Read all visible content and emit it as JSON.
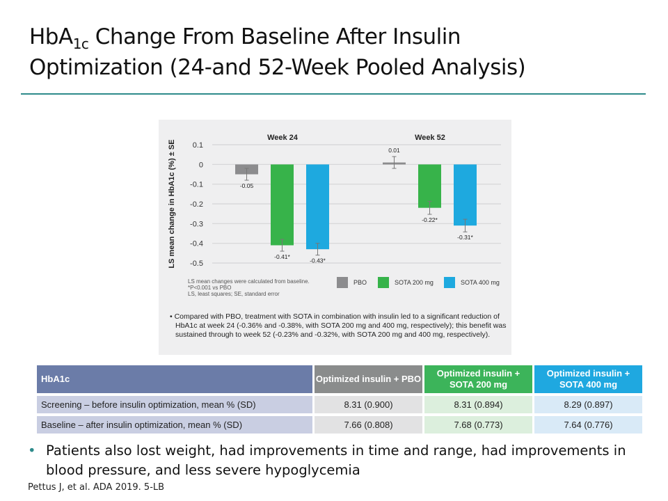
{
  "title": {
    "line1_pre": "HbA",
    "sub": "1c",
    "line1_post": " Change From Baseline After Insulin",
    "line2": "Optimization (24-and 52-Week Pooled Analysis)"
  },
  "chart_data": {
    "type": "bar",
    "ylabel": "LS mean change in HbA1c (%) ± SE",
    "ylim": [
      -0.5,
      0.1
    ],
    "yticks": [
      "0.1",
      "0",
      "-0.1",
      "-0.2",
      "-0.3",
      "-0.4",
      "-0.5"
    ],
    "grid": true,
    "legend_placement": "bottom",
    "categories": [
      "Week 24",
      "Week 52"
    ],
    "series": [
      {
        "name": "PBO",
        "color": "#8c8c8e",
        "values": [
          -0.05,
          0.01
        ],
        "se": [
          0.03,
          0.03
        ],
        "labels": [
          "-0.05",
          "0.01"
        ]
      },
      {
        "name": "SOTA 200 mg",
        "color": "#37b34a",
        "values": [
          -0.41,
          -0.22
        ],
        "se": [
          0.03,
          0.033
        ],
        "labels": [
          "-0.41*",
          "-0.22*"
        ]
      },
      {
        "name": "SOTA 400 mg",
        "color": "#1ea9df",
        "values": [
          -0.43,
          -0.31
        ],
        "se": [
          0.03,
          0.032
        ],
        "labels": [
          "-0.43*",
          "-0.31*"
        ]
      }
    ],
    "footnotes": [
      "LS mean changes were calculated from baseline.",
      "*P<0.001 vs PBO",
      "LS, least squares; SE, standard error"
    ],
    "note": "Compared with PBO, treatment with SOTA in combination with insulin led to a significant reduction of HbA1c at week 24 (-0.36% and -0.38%, with SOTA 200 mg and 400 mg, respectively); this benefit was sustained through to week 52 (-0.23% and -0.32%, with SOTA 200 mg and 400 mg, respectively)."
  },
  "table": {
    "headers": [
      "HbA1c",
      "Optimized insulin + PBO",
      "Optimized insulin + SOTA 200 mg",
      "Optimized insulin + SOTA 400 mg"
    ],
    "rows": [
      [
        "Screening – before insulin optimization, mean % (SD)",
        "8.31 (0.900)",
        "8.31 (0.894)",
        "8.29 (0.897)"
      ],
      [
        "Baseline – after insulin optimization, mean % (SD)",
        "7.66 (0.808)",
        "7.68 (0.773)",
        "7.64 (0.776)"
      ]
    ],
    "header_colors": [
      "#6b7ca8",
      "#8a8c8c",
      "#3cb45a",
      "#1fa8e0"
    ],
    "cell_colors": [
      "#c9cee2",
      "#e2e2e3",
      "#dcefdd",
      "#d9eaf7"
    ]
  },
  "bullet": "Patients also lost weight, had improvements in time and range, had improvements in blood pressure, and less severe hypoglycemia",
  "citation": "Pettus J, et al. ADA 2019. 5-LB"
}
